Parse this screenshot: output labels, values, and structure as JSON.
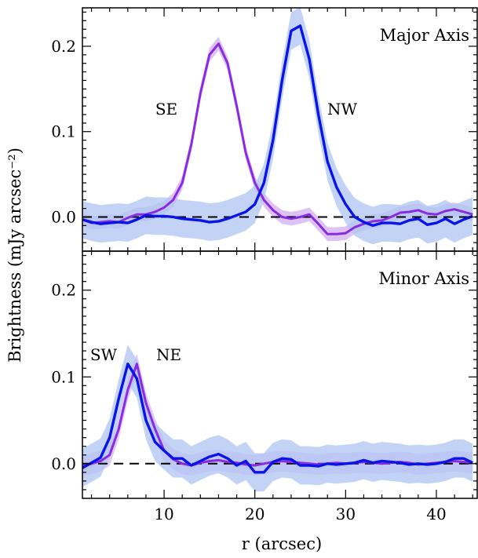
{
  "chart_data": [
    {
      "type": "line",
      "panel_label": "Major Axis",
      "annotations": [
        "SE",
        "NW"
      ],
      "xlabel": "r (arcsec)",
      "ylabel": "Brightness (mJy arcsec⁻²)",
      "xlim": [
        1,
        44.5
      ],
      "ylim": [
        -0.04,
        0.245
      ],
      "xticks": [
        10,
        20,
        30,
        40
      ],
      "yticks": [
        0.0,
        0.1,
        0.2
      ],
      "ytick_labels": [
        "0.0",
        "0.1",
        "0.2"
      ],
      "reference_line": {
        "y": 0.0,
        "style": "dashed"
      },
      "series": [
        {
          "color": "#8a2be2",
          "band_color": "#d6b8f2",
          "points": [
            [
              1,
              -0.003
            ],
            [
              2,
              -0.007
            ],
            [
              3,
              -0.006
            ],
            [
              4,
              -0.005
            ],
            [
              5,
              -0.006
            ],
            [
              6,
              -0.001
            ],
            [
              7,
              0.003
            ],
            [
              8,
              0.003
            ],
            [
              9,
              0.006
            ],
            [
              10,
              0.011
            ],
            [
              11,
              0.02
            ],
            [
              12,
              0.04
            ],
            [
              13,
              0.085
            ],
            [
              14,
              0.145
            ],
            [
              15,
              0.19
            ],
            [
              16,
              0.203
            ],
            [
              17,
              0.18
            ],
            [
              18,
              0.13
            ],
            [
              19,
              0.075
            ],
            [
              20,
              0.04
            ],
            [
              21,
              0.02
            ],
            [
              22,
              0.008
            ],
            [
              23,
              0.0
            ],
            [
              24,
              -0.002
            ],
            [
              25,
              0.0
            ],
            [
              26,
              0.003
            ],
            [
              27,
              -0.008
            ],
            [
              28,
              -0.02
            ],
            [
              29,
              -0.02
            ],
            [
              30,
              -0.019
            ],
            [
              31,
              -0.012
            ],
            [
              32,
              -0.008
            ],
            [
              33,
              -0.005
            ],
            [
              34,
              -0.004
            ],
            [
              35,
              0.0
            ],
            [
              36,
              0.005
            ],
            [
              37,
              0.006
            ],
            [
              38,
              0.008
            ],
            [
              39,
              0.004
            ],
            [
              40,
              0.003
            ],
            [
              41,
              0.007
            ],
            [
              42,
              0.009
            ],
            [
              43,
              0.006
            ],
            [
              44,
              0.003
            ]
          ],
          "band_halfwidth": 0.008
        },
        {
          "color": "#0a14e6",
          "band_color": "#b3c8f2",
          "points": [
            [
              1,
              -0.003
            ],
            [
              2,
              -0.006
            ],
            [
              3,
              -0.008
            ],
            [
              4,
              -0.007
            ],
            [
              5,
              -0.006
            ],
            [
              6,
              -0.007
            ],
            [
              7,
              -0.003
            ],
            [
              8,
              0.002
            ],
            [
              9,
              0.001
            ],
            [
              10,
              0.001
            ],
            [
              11,
              0.0
            ],
            [
              12,
              -0.002
            ],
            [
              13,
              -0.003
            ],
            [
              14,
              -0.004
            ],
            [
              15,
              -0.006
            ],
            [
              16,
              -0.005
            ],
            [
              17,
              -0.002
            ],
            [
              18,
              0.002
            ],
            [
              19,
              0.006
            ],
            [
              20,
              0.015
            ],
            [
              21,
              0.04
            ],
            [
              22,
              0.09
            ],
            [
              23,
              0.16
            ],
            [
              24,
              0.218
            ],
            [
              25,
              0.224
            ],
            [
              26,
              0.185
            ],
            [
              27,
              0.12
            ],
            [
              28,
              0.065
            ],
            [
              29,
              0.035
            ],
            [
              30,
              0.015
            ],
            [
              31,
              0.0
            ],
            [
              32,
              -0.006
            ],
            [
              33,
              -0.01
            ],
            [
              34,
              -0.007
            ],
            [
              35,
              -0.007
            ],
            [
              36,
              -0.008
            ],
            [
              37,
              -0.004
            ],
            [
              38,
              -0.002
            ],
            [
              39,
              -0.009
            ],
            [
              40,
              -0.007
            ],
            [
              41,
              -0.002
            ],
            [
              42,
              -0.008
            ],
            [
              43,
              -0.003
            ],
            [
              44,
              0.001
            ]
          ],
          "band_halfwidth": 0.022
        }
      ]
    },
    {
      "type": "line",
      "panel_label": "Minor Axis",
      "annotations": [
        "SW",
        "NE"
      ],
      "xlabel": "r (arcsec)",
      "xlim": [
        1,
        44.5
      ],
      "ylim": [
        -0.04,
        0.245
      ],
      "xticks": [
        10,
        20,
        30,
        40
      ],
      "xtick_labels": [
        "10",
        "20",
        "30",
        "40"
      ],
      "yticks": [
        0.0,
        0.1,
        0.2
      ],
      "ytick_labels": [
        "0.0",
        "0.1",
        "0.2"
      ],
      "reference_line": {
        "y": 0.0,
        "style": "dashed"
      },
      "series": [
        {
          "color": "#8a2be2",
          "band_color": "#d9bff5",
          "points": [
            [
              1,
              -0.003
            ],
            [
              2,
              0.0
            ],
            [
              3,
              0.003
            ],
            [
              4,
              0.01
            ],
            [
              5,
              0.04
            ],
            [
              6,
              0.085
            ],
            [
              7,
              0.115
            ],
            [
              8,
              0.07
            ],
            [
              9,
              0.04
            ],
            [
              10,
              0.015
            ],
            [
              11,
              0.005
            ],
            [
              12,
              0.0
            ],
            [
              13,
              -0.002
            ],
            [
              14,
              0.001
            ],
            [
              15,
              0.003
            ],
            [
              16,
              0.004
            ],
            [
              17,
              0.002
            ],
            [
              18,
              0.001
            ],
            [
              19,
              -0.001
            ],
            [
              20,
              -0.002
            ],
            [
              21,
              0.0
            ],
            [
              22,
              0.002
            ],
            [
              23,
              0.003
            ],
            [
              24,
              0.002
            ],
            [
              25,
              0.001
            ],
            [
              26,
              0.0
            ],
            [
              27,
              -0.001
            ],
            [
              28,
              0.0
            ],
            [
              29,
              0.001
            ],
            [
              30,
              0.0
            ],
            [
              31,
              0.001
            ],
            [
              32,
              0.002
            ],
            [
              33,
              0.001
            ],
            [
              34,
              0.0
            ],
            [
              35,
              0.001
            ],
            [
              36,
              0.002
            ],
            [
              37,
              0.001
            ],
            [
              38,
              -0.001
            ],
            [
              39,
              0.0
            ],
            [
              40,
              0.001
            ],
            [
              41,
              0.002
            ],
            [
              42,
              0.003
            ],
            [
              43,
              0.002
            ],
            [
              44,
              0.001
            ]
          ],
          "band_halfwidth": 0.012
        },
        {
          "color": "#0a14e6",
          "band_color": "#b3c8f2",
          "points": [
            [
              1,
              -0.005
            ],
            [
              2,
              0.001
            ],
            [
              3,
              0.007
            ],
            [
              4,
              0.03
            ],
            [
              5,
              0.075
            ],
            [
              6,
              0.115
            ],
            [
              7,
              0.098
            ],
            [
              8,
              0.05
            ],
            [
              9,
              0.025
            ],
            [
              10,
              0.015
            ],
            [
              11,
              0.006
            ],
            [
              12,
              0.006
            ],
            [
              13,
              -0.002
            ],
            [
              14,
              0.003
            ],
            [
              15,
              0.008
            ],
            [
              16,
              0.011
            ],
            [
              17,
              0.006
            ],
            [
              18,
              -0.002
            ],
            [
              19,
              0.003
            ],
            [
              20,
              -0.01
            ],
            [
              21,
              -0.01
            ],
            [
              22,
              0.002
            ],
            [
              23,
              0.006
            ],
            [
              24,
              0.005
            ],
            [
              25,
              -0.002
            ],
            [
              26,
              -0.002
            ],
            [
              27,
              -0.003
            ],
            [
              28,
              0.0
            ],
            [
              29,
              -0.001
            ],
            [
              30,
              0.0
            ],
            [
              31,
              0.001
            ],
            [
              32,
              0.004
            ],
            [
              33,
              0.001
            ],
            [
              34,
              0.003
            ],
            [
              35,
              0.002
            ],
            [
              36,
              0.001
            ],
            [
              37,
              -0.001
            ],
            [
              38,
              0.0
            ],
            [
              39,
              -0.001
            ],
            [
              40,
              0.0
            ],
            [
              41,
              0.002
            ],
            [
              42,
              0.006
            ],
            [
              43,
              0.006
            ],
            [
              44,
              0.001
            ]
          ],
          "band_halfwidth": 0.022
        }
      ]
    }
  ]
}
